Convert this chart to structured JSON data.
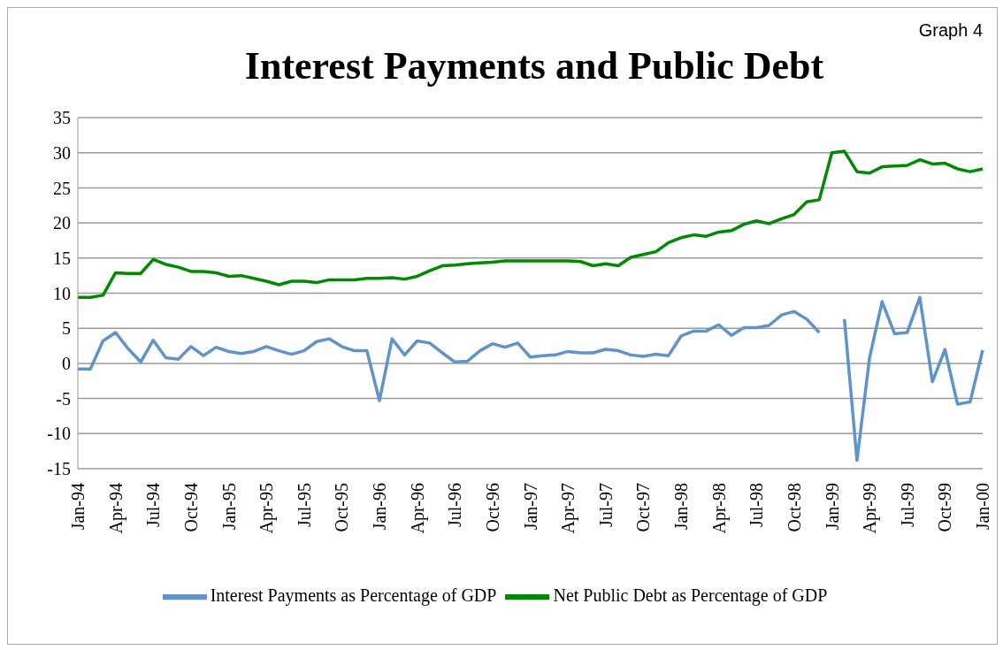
{
  "chart_data": {
    "type": "line",
    "title": "Interest Payments and Public Debt",
    "annotations": [
      "Graph 4"
    ],
    "categories": [
      "Jan-94",
      null,
      null,
      "Apr-94",
      null,
      null,
      "Jul-94",
      null,
      null,
      "Oct-94",
      null,
      null,
      "Jan-95",
      null,
      null,
      "Apr-95",
      null,
      null,
      "Jul-95",
      null,
      null,
      "Oct-95",
      null,
      null,
      "Jan-96",
      null,
      null,
      "Apr-96",
      null,
      null,
      "Jul-96",
      null,
      null,
      "Oct-96",
      null,
      null,
      "Jan-97",
      null,
      null,
      "Apr-97",
      null,
      null,
      "Jul-97",
      null,
      null,
      "Oct-97",
      null,
      null,
      "Jan-98",
      null,
      null,
      "Apr-98",
      null,
      null,
      "Jul-98",
      null,
      null,
      "Oct-98",
      null,
      null,
      "Jan-99",
      null,
      null,
      "Apr-99",
      null,
      null,
      "Jul-99",
      null,
      null,
      "Oct-99",
      null,
      null,
      "Jan-00"
    ],
    "series": [
      {
        "name": "Interest Payments as Percentage of GDP",
        "color": "#5f93cb",
        "values": [
          -0.8,
          -0.8,
          3.2,
          4.4,
          2.1,
          0.2,
          3.3,
          0.8,
          0.6,
          2.4,
          1.1,
          2.3,
          1.7,
          1.4,
          1.7,
          2.4,
          1.8,
          1.3,
          1.8,
          3.1,
          3.5,
          2.4,
          1.8,
          1.8,
          -5.3,
          3.5,
          1.2,
          3.2,
          2.9,
          1.5,
          0.2,
          0.3,
          1.8,
          2.8,
          2.3,
          2.9,
          0.9,
          1.1,
          1.2,
          1.7,
          1.5,
          1.5,
          2.0,
          1.8,
          1.2,
          1.0,
          1.3,
          1.1,
          3.9,
          4.6,
          4.6,
          5.5,
          4.0,
          5.1,
          5.1,
          5.4,
          6.9,
          7.4,
          6.3,
          4.4,
          null,
          6.3,
          -13.8,
          0.8,
          8.8,
          4.2,
          4.4,
          9.4,
          -2.6,
          2.0,
          -5.8,
          -5.5,
          1.9
        ]
      },
      {
        "name": "Net Public Debt as Percentage of GDP",
        "color": "#008a00",
        "values": [
          9.4,
          9.4,
          9.7,
          12.9,
          12.8,
          12.8,
          14.8,
          14.1,
          13.7,
          13.1,
          13.1,
          12.9,
          12.4,
          12.5,
          12.1,
          11.7,
          11.2,
          11.7,
          11.7,
          11.5,
          11.9,
          11.9,
          11.9,
          12.1,
          12.1,
          12.2,
          12.0,
          12.4,
          13.2,
          13.9,
          14.0,
          14.2,
          14.3,
          14.4,
          14.6,
          14.6,
          14.6,
          14.6,
          14.6,
          14.6,
          14.5,
          13.9,
          14.2,
          13.9,
          15.1,
          15.5,
          15.9,
          17.2,
          17.9,
          18.3,
          18.1,
          18.7,
          18.9,
          19.8,
          20.3,
          19.9,
          20.6,
          21.2,
          23.0,
          23.3,
          30.0,
          30.2,
          27.3,
          27.1,
          28.0,
          28.1,
          28.2,
          29.0,
          28.4,
          28.5,
          27.7,
          27.3,
          27.7
        ]
      }
    ],
    "ylim": [
      -15,
      35
    ],
    "yticks": [
      -15,
      -10,
      -5,
      0,
      5,
      10,
      15,
      20,
      25,
      30,
      35
    ],
    "grid": "y",
    "legend": "bottom",
    "line_style": "solid"
  }
}
